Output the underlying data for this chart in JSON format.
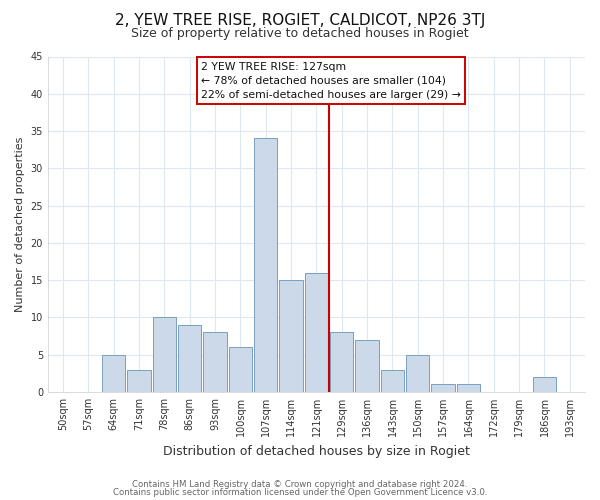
{
  "title": "2, YEW TREE RISE, ROGIET, CALDICOT, NP26 3TJ",
  "subtitle": "Size of property relative to detached houses in Rogiet",
  "xlabel": "Distribution of detached houses by size in Rogiet",
  "ylabel": "Number of detached properties",
  "bar_color": "#ccd9e8",
  "bar_edge_color": "#7a9fc0",
  "categories": [
    "50sqm",
    "57sqm",
    "64sqm",
    "71sqm",
    "78sqm",
    "86sqm",
    "93sqm",
    "100sqm",
    "107sqm",
    "114sqm",
    "121sqm",
    "129sqm",
    "136sqm",
    "143sqm",
    "150sqm",
    "157sqm",
    "164sqm",
    "172sqm",
    "179sqm",
    "186sqm",
    "193sqm"
  ],
  "values": [
    0,
    0,
    5,
    3,
    10,
    9,
    8,
    6,
    34,
    15,
    16,
    8,
    7,
    3,
    5,
    1,
    1,
    0,
    0,
    2,
    0
  ],
  "vline_x_index": 11,
  "vline_color": "#cc0000",
  "annotation_title": "2 YEW TREE RISE: 127sqm",
  "annotation_line1": "← 78% of detached houses are smaller (104)",
  "annotation_line2": "22% of semi-detached houses are larger (29) →",
  "annotation_box_color": "#ffffff",
  "annotation_box_edge": "#cc0000",
  "ylim": [
    0,
    45
  ],
  "yticks": [
    0,
    5,
    10,
    15,
    20,
    25,
    30,
    35,
    40,
    45
  ],
  "footer1": "Contains HM Land Registry data © Crown copyright and database right 2024.",
  "footer2": "Contains public sector information licensed under the Open Government Licence v3.0.",
  "background_color": "#ffffff",
  "grid_color": "#dde8f0",
  "title_fontsize": 11,
  "subtitle_fontsize": 9,
  "tick_fontsize": 7,
  "ylabel_fontsize": 8,
  "xlabel_fontsize": 9
}
